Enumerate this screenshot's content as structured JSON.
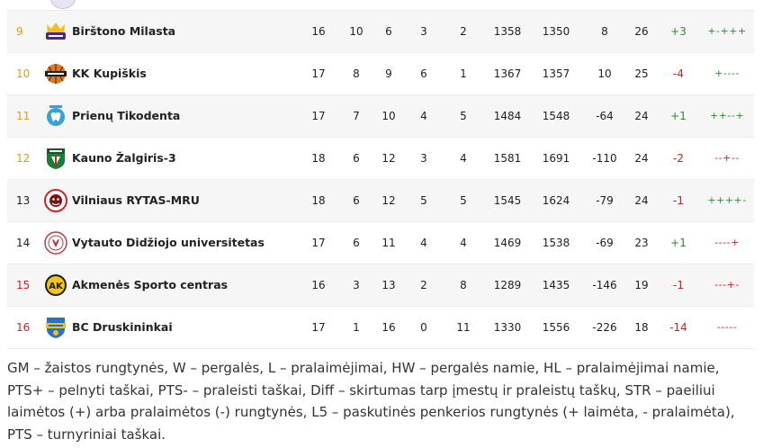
{
  "table": {
    "rows": [
      {
        "rank": "9",
        "rank_color": "#d4a017",
        "name": "Birštono Milasta",
        "logo": "milasta-logo",
        "gm": "16",
        "w": "10",
        "l": "6",
        "hw": "3",
        "hl": "2",
        "pts_plus": "1358",
        "pts_minus": "1350",
        "diff": "8",
        "pts": "26",
        "str": "+3",
        "str_color": "#2e8b2e",
        "l5": "+-+++"
      },
      {
        "rank": "10",
        "rank_color": "#d4a017",
        "name": "KK Kupiškis",
        "logo": "kupiskis-logo",
        "gm": "17",
        "w": "8",
        "l": "9",
        "hw": "6",
        "hl": "1",
        "pts_plus": "1367",
        "pts_minus": "1357",
        "diff": "10",
        "pts": "25",
        "str": "-4",
        "str_color": "#d11f1f",
        "l5": "+----"
      },
      {
        "rank": "11",
        "rank_color": "#d4a017",
        "name": "Prienų Tikodenta",
        "logo": "tikodenta-logo",
        "gm": "17",
        "w": "7",
        "l": "10",
        "hw": "4",
        "hl": "5",
        "pts_plus": "1484",
        "pts_minus": "1548",
        "diff": "-64",
        "pts": "24",
        "str": "+1",
        "str_color": "#2e8b2e",
        "l5": "++--+"
      },
      {
        "rank": "12",
        "rank_color": "#d4a017",
        "name": "Kauno Žalgiris-3",
        "logo": "zalgiris-logo",
        "gm": "18",
        "w": "6",
        "l": "12",
        "hw": "3",
        "hl": "4",
        "pts_plus": "1581",
        "pts_minus": "1691",
        "diff": "-110",
        "pts": "24",
        "str": "-2",
        "str_color": "#d11f1f",
        "l5": "--+--"
      },
      {
        "rank": "13",
        "rank_color": "#1f1f1f",
        "name": "Vilniaus RYTAS-MRU",
        "logo": "rytas-logo",
        "gm": "18",
        "w": "6",
        "l": "12",
        "hw": "5",
        "hl": "5",
        "pts_plus": "1545",
        "pts_minus": "1624",
        "diff": "-79",
        "pts": "24",
        "str": "-1",
        "str_color": "#d11f1f",
        "l5": "++++-"
      },
      {
        "rank": "14",
        "rank_color": "#1f1f1f",
        "name": "Vytauto Didžiojo universitetas",
        "logo": "vdu-logo",
        "gm": "17",
        "w": "6",
        "l": "11",
        "hw": "4",
        "hl": "4",
        "pts_plus": "1469",
        "pts_minus": "1538",
        "diff": "-69",
        "pts": "23",
        "str": "+1",
        "str_color": "#2e8b2e",
        "l5": "----+"
      },
      {
        "rank": "15",
        "rank_color": "#d11f1f",
        "name": "Akmenės Sporto centras",
        "logo": "akmene-logo",
        "gm": "16",
        "w": "3",
        "l": "13",
        "hw": "2",
        "hl": "8",
        "pts_plus": "1289",
        "pts_minus": "1435",
        "diff": "-146",
        "pts": "19",
        "str": "-1",
        "str_color": "#d11f1f",
        "l5": "---+-"
      },
      {
        "rank": "16",
        "rank_color": "#d11f1f",
        "name": "BC Druskininkai",
        "logo": "druskininkai-logo",
        "gm": "17",
        "w": "1",
        "l": "16",
        "hw": "0",
        "hl": "11",
        "pts_plus": "1330",
        "pts_minus": "1556",
        "diff": "-226",
        "pts": "18",
        "str": "-14",
        "str_color": "#d11f1f",
        "l5": "-----"
      }
    ]
  },
  "colors": {
    "positive": "#2e8b2e",
    "negative": "#d11f1f",
    "zone_gold": "#d4a017",
    "row_alt": "#f6f6f6"
  },
  "footnote": {
    "text": "GM – žaistos rungtynės, W – pergalės, L – pralaimėjimai, HW – pergalės namie, HL – pralaimėjimai namie, PTS+ – pelnyti taškai, PTS- – praleisti taškai, Diff – skirtumas tarp įmestų ir praleistų taškų, STR – paeiliui laimėtos (+) arba pralaimėtos (-) rungtynės, L5 – paskutinės penkerios rungtynės (+ laimėta, - pralaimėta), PTS – turnyriniai taškai."
  }
}
